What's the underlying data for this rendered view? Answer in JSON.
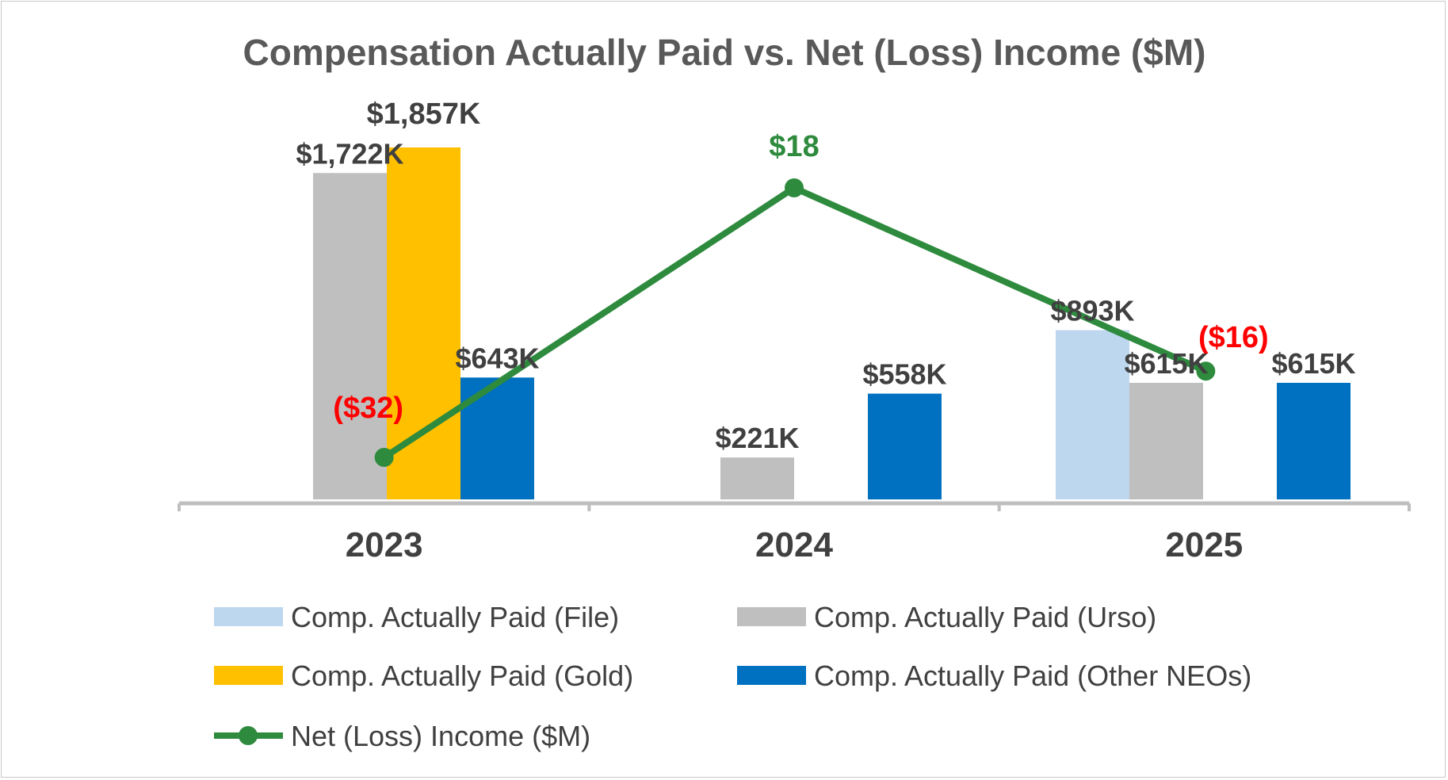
{
  "chart_data": {
    "type": "bar",
    "title": "Compensation Actually Paid vs. Net (Loss) Income ($M)",
    "categories": [
      "2023",
      "2024",
      "2025"
    ],
    "xlabel": "",
    "ylabel": "",
    "grid": false,
    "legend_position": "bottom",
    "series": [
      {
        "name": "Comp. Actually Paid (File)",
        "color": "#BDD7EE",
        "values": [
          null,
          null,
          893
        ],
        "labels": [
          null,
          null,
          "$893K"
        ]
      },
      {
        "name": "Comp. Actually Paid (Urso)",
        "color": "#BFBFBF",
        "values": [
          1722,
          221,
          615
        ],
        "labels": [
          "$1,722K",
          "$221K",
          "$615K"
        ]
      },
      {
        "name": "Comp. Actually Paid (Gold)",
        "color": "#FFC000",
        "values": [
          1857,
          null,
          null
        ],
        "labels": [
          null,
          null,
          null
        ],
        "labels_bold": [
          "$1,857K",
          null,
          null
        ]
      },
      {
        "name": "Comp. Actually Paid (Other NEOs)",
        "color": "#0070C0",
        "values": [
          643,
          558,
          615
        ],
        "labels": [
          "$643K",
          "$558K",
          "$615K"
        ]
      }
    ],
    "line_series": {
      "name": "Net (Loss) Income ($M)",
      "color": "#2E8B3E",
      "values": [
        -32,
        18,
        -16
      ],
      "labels": [
        "($32)",
        "$18",
        "($16)"
      ],
      "label_colors": [
        "#FF0000",
        "#2E8B3E",
        "#FF0000"
      ],
      "ylim": [
        -40,
        30
      ]
    },
    "bar_ylim": [
      0,
      2000
    ]
  }
}
